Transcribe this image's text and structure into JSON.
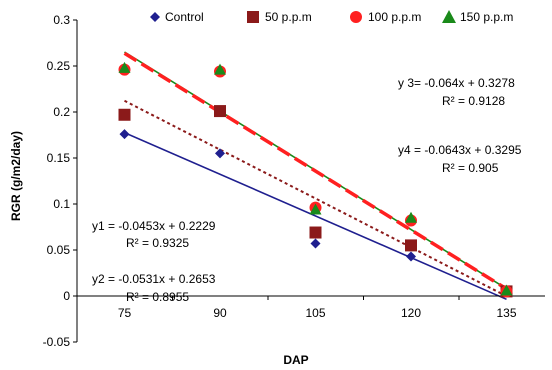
{
  "chart_data": {
    "type": "scatter",
    "xlabel": "DAP",
    "ylabel": "RGR (g/m2/day)",
    "x": [
      75,
      90,
      105,
      120,
      135
    ],
    "ylim": [
      -0.05,
      0.3
    ],
    "yticks": [
      "-0.05",
      "0",
      "0.05",
      "0.1",
      "0.15",
      "0.2",
      "0.25",
      "0.3"
    ],
    "xticks": [
      "75",
      "90",
      "105",
      "120",
      "135"
    ],
    "grid": false,
    "legend": "top",
    "series": [
      {
        "name": "Control",
        "marker": "diamond",
        "color": "#1f1f8f",
        "values": [
          0.176,
          0.155,
          0.057,
          0.043,
          0.004
        ],
        "trend": {
          "color": "#1f1f8f",
          "style": "solid",
          "slope": -0.0453,
          "intercept": 0.2229
        }
      },
      {
        "name": "50 p.p.m",
        "marker": "square",
        "color": "#8b1a1a",
        "values": [
          0.197,
          0.201,
          0.069,
          0.055,
          0.005
        ],
        "trend": {
          "color": "#8b1a1a",
          "style": "dotted",
          "slope": -0.0531,
          "intercept": 0.2653
        }
      },
      {
        "name": "100 p.p.m",
        "marker": "circle",
        "color": "#ff2020",
        "values": [
          0.246,
          0.244,
          0.096,
          0.082,
          0.005
        ],
        "trend": {
          "color": "#ff2020",
          "style": "dashed",
          "slope": -0.064,
          "intercept": 0.3278
        }
      },
      {
        "name": "150 p.p.m",
        "marker": "triangle",
        "color": "#1a8a1a",
        "values": [
          0.248,
          0.246,
          0.094,
          0.085,
          0.006
        ],
        "trend": {
          "color": "#1a8a1a",
          "style": "solid",
          "slope": -0.0643,
          "intercept": 0.3295
        }
      }
    ],
    "annotations": [
      {
        "id": "eq1",
        "equation": "y1 = -0.0453x + 0.2229",
        "r2": "R² = 0.9325"
      },
      {
        "id": "eq2",
        "equation": "y2 = -0.0531x + 0.2653",
        "r2": "R² = 0.8955"
      },
      {
        "id": "eq3",
        "equation": "y 3= -0.064x + 0.3278",
        "r2": "R² = 0.9128"
      },
      {
        "id": "eq4",
        "equation": "y4 = -0.0643x + 0.3295",
        "r2": "R² = 0.905"
      }
    ]
  }
}
